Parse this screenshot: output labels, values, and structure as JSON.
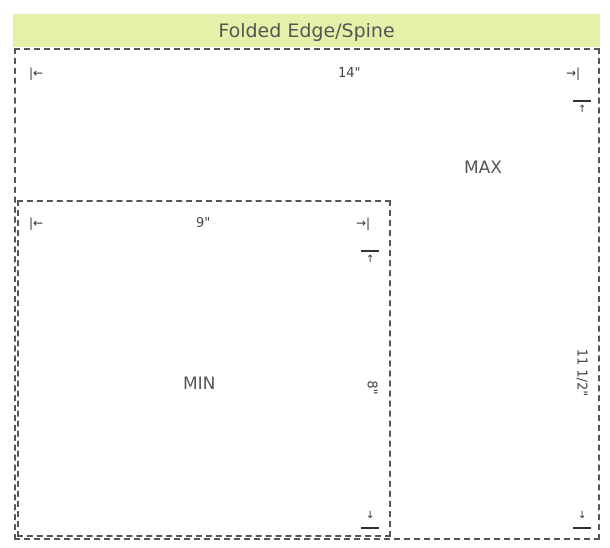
{
  "header": {
    "title": "Folded Edge/Spine",
    "color": "#e6f0a8"
  },
  "max": {
    "label": "MAX",
    "width_label": "14\"",
    "height_label": "11 1/2\""
  },
  "min": {
    "label": "MIN",
    "width_label": "9\"",
    "height_label": "8\""
  },
  "arrows": {
    "left": "|←",
    "right": "→|",
    "up": "↑",
    "down": "↓"
  }
}
